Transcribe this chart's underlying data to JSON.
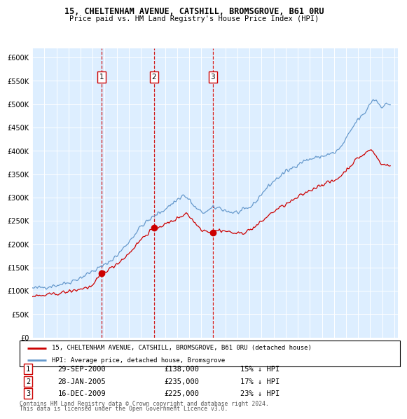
{
  "title": "15, CHELTENHAM AVENUE, CATSHILL, BROMSGROVE, B61 0RU",
  "subtitle": "Price paid vs. HM Land Registry's House Price Index (HPI)",
  "legend_line1": "15, CHELTENHAM AVENUE, CATSHILL, BROMSGROVE, B61 0RU (detached house)",
  "legend_line2": "HPI: Average price, detached house, Bromsgrove",
  "transactions": [
    {
      "num": 1,
      "date": "29-SEP-2000",
      "price": "£138,000",
      "hpi_note": "15% ↓ HPI",
      "x_year": 2000.75,
      "y_val": 138000
    },
    {
      "num": 2,
      "date": "28-JAN-2005",
      "price": "£235,000",
      "hpi_note": "17% ↓ HPI",
      "x_year": 2005.07,
      "y_val": 235000
    },
    {
      "num": 3,
      "date": "16-DEC-2009",
      "price": "£225,000",
      "hpi_note": "23% ↓ HPI",
      "x_year": 2009.96,
      "y_val": 225000
    }
  ],
  "footnote1": "Contains HM Land Registry data © Crown copyright and database right 2024.",
  "footnote2": "This data is licensed under the Open Government Licence v3.0.",
  "plot_bg": "#ddeeff",
  "red_color": "#cc0000",
  "blue_color": "#6699cc",
  "ylim": [
    0,
    620000
  ],
  "yticks": [
    0,
    50000,
    100000,
    150000,
    200000,
    250000,
    300000,
    350000,
    400000,
    450000,
    500000,
    550000,
    600000
  ],
  "xlim_start": 1995.0,
  "xlim_end": 2025.3
}
